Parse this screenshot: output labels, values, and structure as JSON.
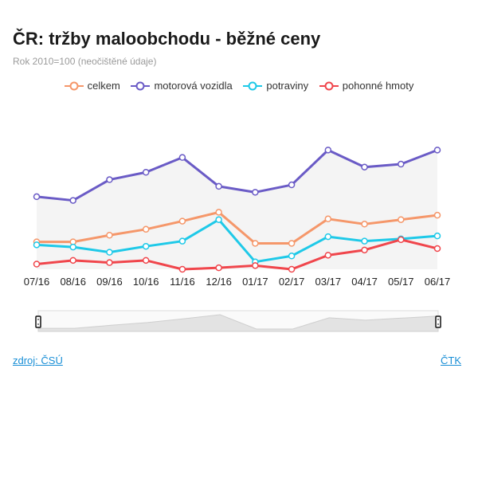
{
  "header": {
    "title": "ČR: tržby maloobchodu - běžné ceny",
    "subtitle": "Rok 2010=100 (neočištěné údaje)"
  },
  "footer": {
    "source_label": "zdroj: ČSÚ",
    "credit_label": "ČTK"
  },
  "colors": {
    "celkem": "#f5976a",
    "motorova": "#6a5bc6",
    "potraviny": "#1ec9e8",
    "pohonne": "#f0464c",
    "area": "#f4f4f4",
    "slider": "#e3e3e3"
  },
  "chart_data": {
    "type": "line",
    "title": "ČR: tržby maloobchodu - běžné ceny",
    "subtitle": "Rok 2010=100 (neočištěné údaje)",
    "categories": [
      "07/16",
      "08/16",
      "09/16",
      "10/16",
      "11/16",
      "12/16",
      "01/17",
      "02/17",
      "03/17",
      "04/17",
      "05/17",
      "06/17"
    ],
    "ylim": [
      100,
      185
    ],
    "grid": false,
    "legend_position": "top-center",
    "series": [
      {
        "name": "celkem",
        "color": "#f5976a",
        "values": [
          118.5,
          118.5,
          123,
          127,
          132.5,
          138.5,
          117.5,
          117.5,
          134,
          130.5,
          133.5,
          136.5
        ]
      },
      {
        "name": "motorová vozidla",
        "color": "#6a5bc6",
        "values": [
          149,
          146.5,
          160.5,
          165.5,
          175.5,
          156,
          152,
          157,
          180.5,
          169,
          171,
          180.5
        ]
      },
      {
        "name": "potraviny",
        "color": "#1ec9e8",
        "values": [
          116.5,
          115,
          111.5,
          115.5,
          119,
          133.5,
          105,
          109,
          122,
          119,
          120.5,
          122.5
        ]
      },
      {
        "name": "pohonné hmoty",
        "color": "#f0464c",
        "values": [
          103.5,
          106,
          104.5,
          106,
          100,
          101,
          102.5,
          100,
          109.5,
          113,
          120,
          114
        ]
      }
    ]
  }
}
